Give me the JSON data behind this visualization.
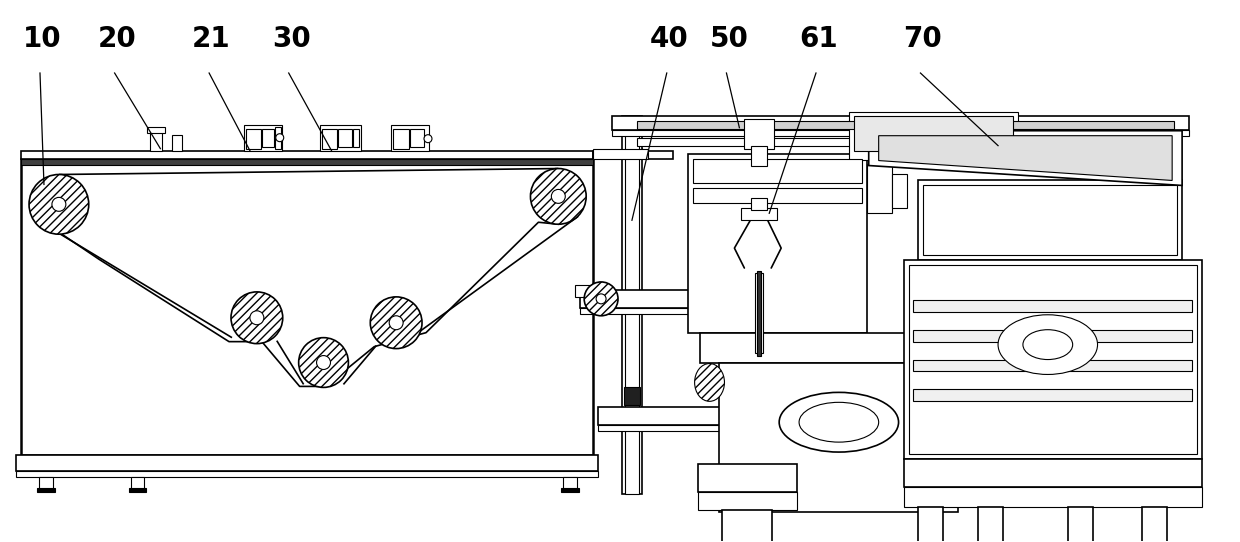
{
  "bg_color": "#ffffff",
  "line_color": "#000000",
  "figsize": [
    12.4,
    5.42
  ],
  "dpi": 100,
  "label_fontsize": 20
}
